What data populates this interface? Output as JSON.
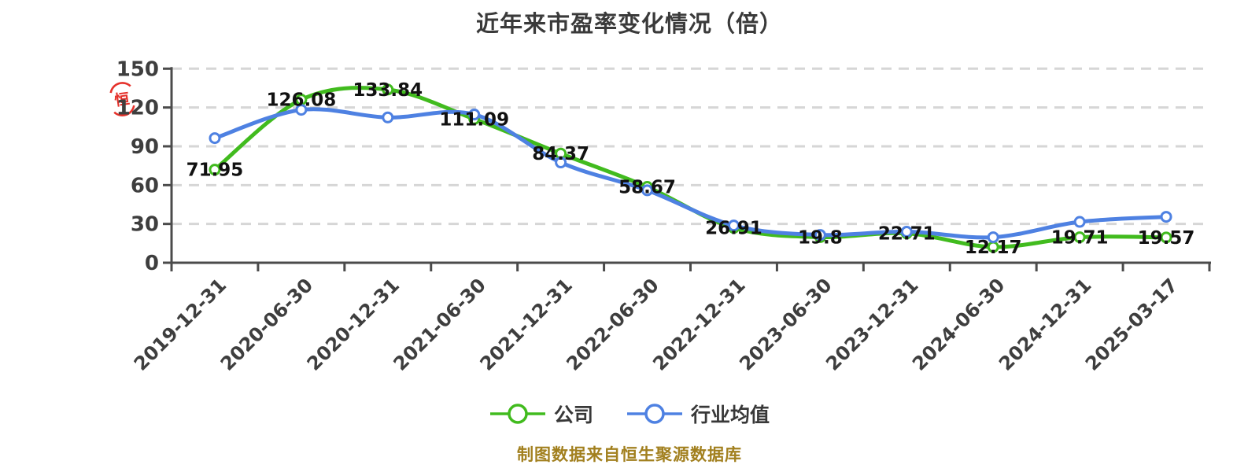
{
  "title": "近年来市盈率变化情况（倍）",
  "seal": {
    "char": "恒",
    "color": "#e42620"
  },
  "footer": {
    "text": "制图数据来自恒生聚源数据库",
    "color": "#a2801f"
  },
  "legend": [
    {
      "label": "公司",
      "color": "#41bb1e"
    },
    {
      "label": "行业均值",
      "color": "#4e81e2"
    }
  ],
  "axis_colors": {
    "axis": "#4b4b4b",
    "tick_label": "#3e3e3e",
    "gridline": "#d6d6d6",
    "data_label": "#111111"
  },
  "chart_data": {
    "type": "line",
    "title": "近年来市盈率变化情况（倍）",
    "categories": [
      "2019-12-31",
      "2020-06-30",
      "2020-12-31",
      "2021-06-30",
      "2021-12-31",
      "2022-06-30",
      "2022-12-31",
      "2023-06-30",
      "2023-12-31",
      "2024-06-30",
      "2024-12-31",
      "2025-03-17"
    ],
    "series": [
      {
        "name": "公司",
        "color": "#41bb1e",
        "values": [
          71.95,
          126.08,
          133.84,
          111.09,
          84.37,
          58.67,
          26.91,
          19.8,
          22.71,
          12.17,
          19.71,
          19.57
        ],
        "point_labels": [
          "71.95",
          "126.08",
          "133.84",
          "111.09",
          "84.37",
          "58.67",
          "26.91",
          "19.8",
          "22.71",
          "12.17",
          "19.71",
          "19.57"
        ]
      },
      {
        "name": "行业均值",
        "color": "#4e81e2",
        "values": [
          96.3,
          118.2,
          112.3,
          114.6,
          77.5,
          56.0,
          28.8,
          21.5,
          24.0,
          19.7,
          31.6,
          35.5
        ]
      }
    ],
    "xlabel": "",
    "ylabel": "",
    "ylim": [
      0,
      150
    ],
    "yticks": [
      0,
      30,
      60,
      90,
      120,
      150
    ],
    "grid": "horizontal-dashed",
    "smooth": true,
    "legend_position": "bottom"
  }
}
